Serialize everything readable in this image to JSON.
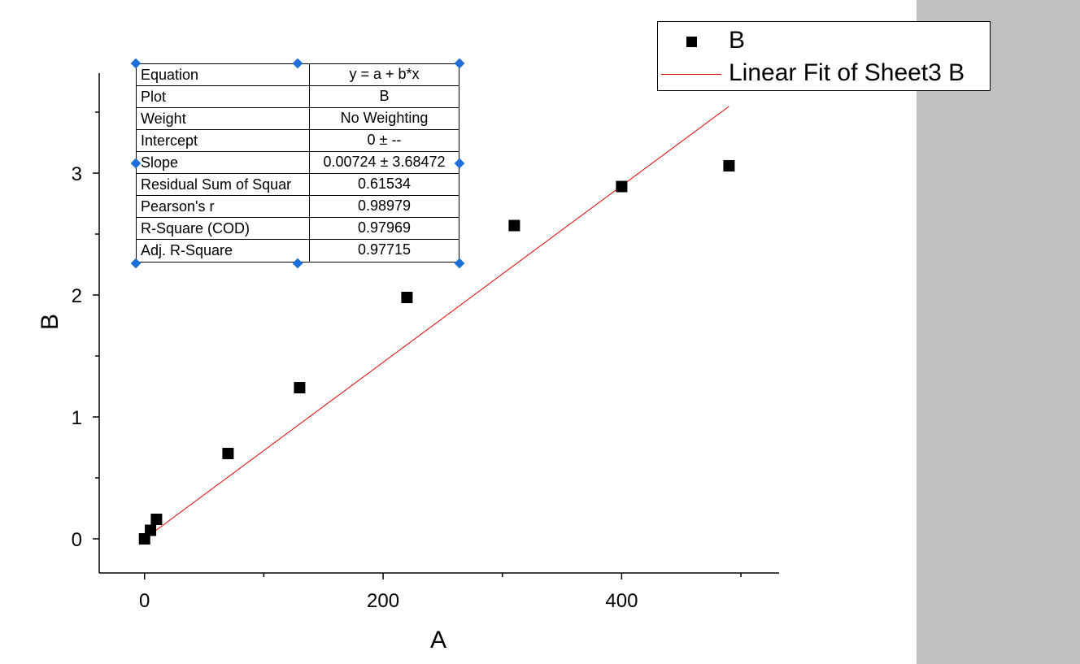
{
  "chart_data": {
    "type": "scatter",
    "xlabel": "A",
    "ylabel": "B",
    "xlim": [
      -38,
      532
    ],
    "ylim": [
      -0.28,
      3.82
    ],
    "xticks": [
      0,
      200,
      400
    ],
    "yticks": [
      0,
      1,
      2,
      3
    ],
    "grid": false,
    "legend_position": "top-right",
    "series": [
      {
        "name": "B",
        "marker": "square",
        "color": "#000000",
        "x": [
          0,
          5,
          10,
          70,
          130,
          220,
          310,
          400,
          490
        ],
        "y": [
          0,
          0.07,
          0.16,
          0.7,
          1.24,
          1.98,
          2.57,
          2.89,
          3.06
        ]
      },
      {
        "name": "Linear Fit of Sheet3 B",
        "type": "line",
        "color": "#e00000",
        "x": [
          0,
          490
        ],
        "y": [
          0,
          3.5476
        ]
      }
    ],
    "fit_table": [
      {
        "label": "Equation",
        "value": "y = a + b*x"
      },
      {
        "label": "Plot",
        "value": "B"
      },
      {
        "label": "Weight",
        "value": "No Weighting"
      },
      {
        "label": "Intercept",
        "value": "0 ± --"
      },
      {
        "label": "Slope",
        "value": "0.00724 ± 3.68472"
      },
      {
        "label": "Residual Sum of Squar",
        "value": "0.61534"
      },
      {
        "label": "Pearson's r",
        "value": "0.98979"
      },
      {
        "label": "R-Square (COD)",
        "value": "0.97969"
      },
      {
        "label": "Adj. R-Square",
        "value": "0.97715"
      }
    ]
  }
}
